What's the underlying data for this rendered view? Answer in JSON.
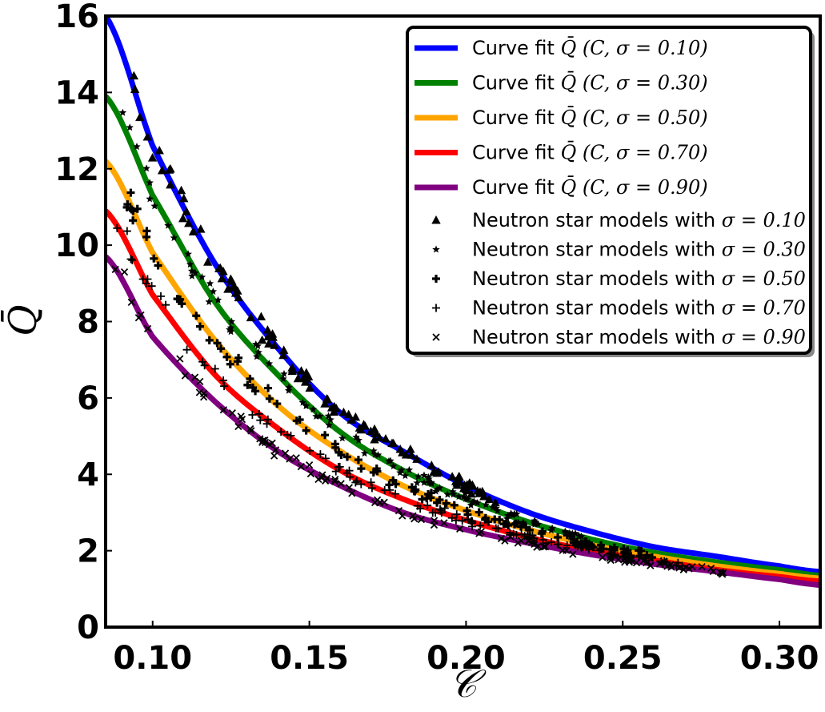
{
  "chart_data": {
    "type": "scatter",
    "xlabel": "𝒞",
    "ylabel": "Q̄",
    "xlim": [
      0.085,
      0.313
    ],
    "ylim": [
      0,
      16
    ],
    "xticks": [
      "0.10",
      "0.15",
      "0.20",
      "0.25",
      "0.30"
    ],
    "yticks": [
      "0",
      "2",
      "4",
      "6",
      "8",
      "10",
      "12",
      "14",
      "16"
    ],
    "legend_position": "top-right",
    "curves": [
      {
        "label_prefix": "Curve fit ",
        "label_math": "Q̄ (C, σ = 0.10)",
        "sigma": 0.1,
        "color": "#0000ff",
        "x": [
          0.085,
          0.1,
          0.12,
          0.14,
          0.16,
          0.18,
          0.2,
          0.22,
          0.24,
          0.26,
          0.28,
          0.3,
          0.313
        ],
        "y": [
          16.0,
          12.6,
          9.5,
          7.3,
          5.6,
          4.6,
          3.7,
          3.0,
          2.5,
          2.1,
          1.85,
          1.6,
          1.45
        ]
      },
      {
        "label_prefix": "Curve fit ",
        "label_math": "Q̄ (C, σ = 0.30)",
        "sigma": 0.3,
        "color": "#008000",
        "x": [
          0.085,
          0.1,
          0.12,
          0.14,
          0.16,
          0.18,
          0.2,
          0.22,
          0.24,
          0.26,
          0.28,
          0.3,
          0.313
        ],
        "y": [
          13.9,
          11.3,
          8.5,
          6.6,
          5.1,
          4.1,
          3.35,
          2.75,
          2.3,
          1.95,
          1.7,
          1.5,
          1.35
        ]
      },
      {
        "label_prefix": "Curve fit ",
        "label_math": "Q̄ (C, σ = 0.50)",
        "sigma": 0.5,
        "color": "#ffa500",
        "x": [
          0.085,
          0.1,
          0.12,
          0.14,
          0.16,
          0.18,
          0.2,
          0.22,
          0.24,
          0.26,
          0.28,
          0.3,
          0.313
        ],
        "y": [
          12.2,
          9.8,
          7.5,
          5.8,
          4.6,
          3.7,
          3.05,
          2.55,
          2.15,
          1.85,
          1.6,
          1.4,
          1.28
        ]
      },
      {
        "label_prefix": "Curve fit ",
        "label_math": "Q̄ (C, σ = 0.70)",
        "sigma": 0.7,
        "color": "#ff0000",
        "x": [
          0.085,
          0.1,
          0.12,
          0.14,
          0.16,
          0.18,
          0.2,
          0.22,
          0.24,
          0.26,
          0.28,
          0.3,
          0.313
        ],
        "y": [
          10.9,
          8.7,
          6.6,
          5.2,
          4.1,
          3.35,
          2.8,
          2.35,
          2.0,
          1.75,
          1.5,
          1.32,
          1.2
        ]
      },
      {
        "label_prefix": "Curve fit ",
        "label_math": "Q̄ (C, σ = 0.90)",
        "sigma": 0.9,
        "color": "#800080",
        "x": [
          0.085,
          0.1,
          0.12,
          0.14,
          0.16,
          0.18,
          0.2,
          0.22,
          0.24,
          0.26,
          0.28,
          0.3,
          0.313
        ],
        "y": [
          9.7,
          7.6,
          5.9,
          4.6,
          3.7,
          3.0,
          2.55,
          2.2,
          1.9,
          1.65,
          1.45,
          1.25,
          1.1
        ]
      }
    ],
    "scatter_series": [
      {
        "label_prefix": "Neutron star models with ",
        "label_math": "σ = 0.10",
        "sigma": 0.1,
        "marker": "triangle",
        "xrange": [
          0.094,
          0.21
        ],
        "curve_index": 0
      },
      {
        "label_prefix": "Neutron star models with ",
        "label_math": "σ = 0.30",
        "sigma": 0.3,
        "marker": "star",
        "xrange": [
          0.09,
          0.24
        ],
        "curve_index": 1
      },
      {
        "label_prefix": "Neutron star models with ",
        "label_math": "σ = 0.50",
        "sigma": 0.5,
        "marker": "plus-bold",
        "xrange": [
          0.09,
          0.26
        ],
        "curve_index": 2
      },
      {
        "label_prefix": "Neutron star models with ",
        "label_math": "σ = 0.70",
        "sigma": 0.7,
        "marker": "plus",
        "xrange": [
          0.088,
          0.27
        ],
        "curve_index": 3
      },
      {
        "label_prefix": "Neutron star models with ",
        "label_math": "σ = 0.90",
        "sigma": 0.9,
        "marker": "x",
        "xrange": [
          0.088,
          0.285
        ],
        "curve_index": 4
      }
    ]
  }
}
